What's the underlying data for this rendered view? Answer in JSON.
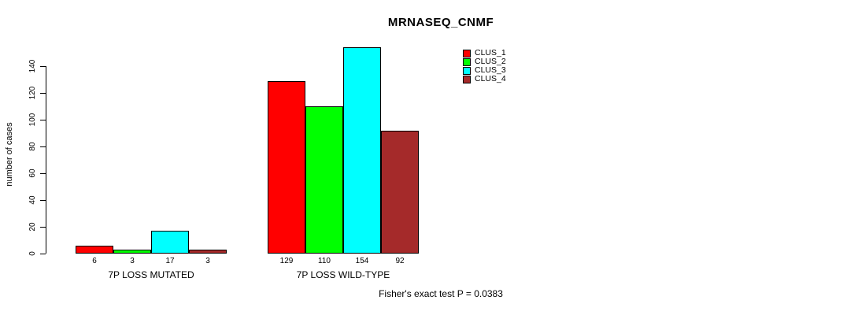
{
  "chart_data": {
    "type": "bar",
    "title": "MRNASEQ_CNMF",
    "ylabel": "number of cases",
    "ylim": [
      0,
      140
    ],
    "yticks": [
      0,
      20,
      40,
      60,
      80,
      100,
      120,
      140
    ],
    "grid": false,
    "legend_position": "top-right",
    "series": [
      {
        "name": "CLUS_1",
        "color": "#FF0000"
      },
      {
        "name": "CLUS_2",
        "color": "#00FF00"
      },
      {
        "name": "CLUS_3",
        "color": "#00FFFF"
      },
      {
        "name": "CLUS_4",
        "color": "#A52A2A"
      }
    ],
    "categories": [
      "7P LOSS MUTATED",
      "7P LOSS WILD-TYPE"
    ],
    "groups": [
      {
        "label": "7P LOSS MUTATED",
        "values": [
          6,
          3,
          17,
          3
        ]
      },
      {
        "label": "7P LOSS WILD-TYPE",
        "values": [
          129,
          110,
          154,
          92
        ]
      }
    ],
    "bar_value_labels": true,
    "annotation": "Fisher's exact test P = 0.0383",
    "colors": {
      "bar_border": "#000000",
      "axis": "#000000",
      "background": "#FFFFFF",
      "text": "#000000"
    }
  }
}
